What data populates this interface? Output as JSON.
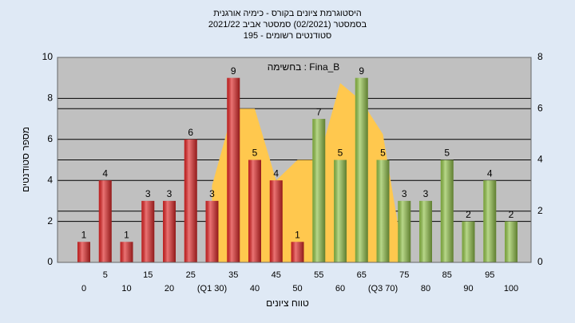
{
  "chart_data": {
    "type": "bar",
    "title": "היסטוגרמת ציונים בקורס - כימיה אורגנית",
    "subtitle": "בסמסטר  (02/2021)  סמסטר אביב 2021/22",
    "subtitle2": "סטודנטים רשומים - 195",
    "annotation": "בחשימה : Fina_B",
    "x_label": "טווח ציונים",
    "y_label": "מספר סטודנטים",
    "categories": [
      "0",
      "5",
      "10",
      "15",
      "20",
      "25",
      "(Q1 30)",
      "35",
      "40",
      "45",
      "50",
      "55",
      "60",
      "65",
      "(Q3 70)",
      "75",
      "80",
      "85",
      "90",
      "95",
      "100"
    ],
    "values": [
      1,
      4,
      1,
      3,
      3,
      6,
      3,
      9,
      5,
      4,
      1,
      7,
      5,
      9,
      5,
      3,
      3,
      5,
      2,
      4,
      2
    ],
    "colors": [
      "#e02828",
      "#e02828",
      "#e02828",
      "#e02828",
      "#e02828",
      "#e02828",
      "#e02828",
      "#e02828",
      "#e02828",
      "#e02828",
      "#e02828",
      "#92c24a",
      "#92c24a",
      "#92c24a",
      "#92c24a",
      "#92c24a",
      "#92c24a",
      "#92c24a",
      "#92c24a",
      "#92c24a",
      "#92c24a"
    ],
    "area": {
      "axis": "y2",
      "color": "#ffc84e",
      "values": [
        null,
        null,
        null,
        null,
        null,
        null,
        3,
        6,
        6,
        3.2,
        4,
        4,
        7,
        6.3,
        5,
        0,
        null,
        null,
        null,
        null,
        null
      ]
    },
    "ylim": [
      0,
      10
    ],
    "yticks": [
      0,
      2,
      4,
      6,
      8,
      10
    ],
    "y2lim": [
      0,
      8
    ],
    "y2ticks": [
      0,
      2,
      4,
      6,
      8
    ],
    "grid": true
  }
}
